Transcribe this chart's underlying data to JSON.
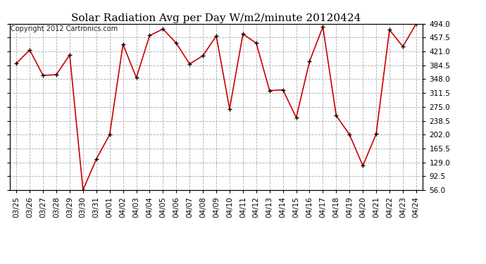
{
  "title": "Solar Radiation Avg per Day W/m2/minute 20120424",
  "copyright_text": "Copyright 2012 Cartronics.com",
  "dates": [
    "03/25",
    "03/26",
    "03/27",
    "03/28",
    "03/29",
    "03/30",
    "03/31",
    "04/01",
    "04/02",
    "04/03",
    "04/04",
    "04/05",
    "04/06",
    "04/07",
    "04/08",
    "04/09",
    "04/10",
    "04/11",
    "04/12",
    "04/13",
    "04/14",
    "04/15",
    "04/16",
    "04/17",
    "04/18",
    "04/19",
    "04/20",
    "04/21",
    "04/22",
    "04/23",
    "04/24"
  ],
  "values": [
    390,
    425,
    358,
    360,
    412,
    56,
    138,
    202,
    440,
    352,
    463,
    480,
    443,
    388,
    410,
    462,
    270,
    467,
    443,
    318,
    320,
    247,
    395,
    486,
    252,
    202,
    120,
    204,
    478,
    434,
    494
  ],
  "line_color": "#cc0000",
  "marker_color": "#000000",
  "background_color": "#ffffff",
  "grid_color": "#aaaaaa",
  "ylim": [
    56.0,
    494.0
  ],
  "yticks": [
    56.0,
    92.5,
    129.0,
    165.5,
    202.0,
    238.5,
    275.0,
    311.5,
    348.0,
    384.5,
    421.0,
    457.5,
    494.0
  ],
  "title_fontsize": 11,
  "copyright_fontsize": 7,
  "tick_fontsize": 7.5
}
